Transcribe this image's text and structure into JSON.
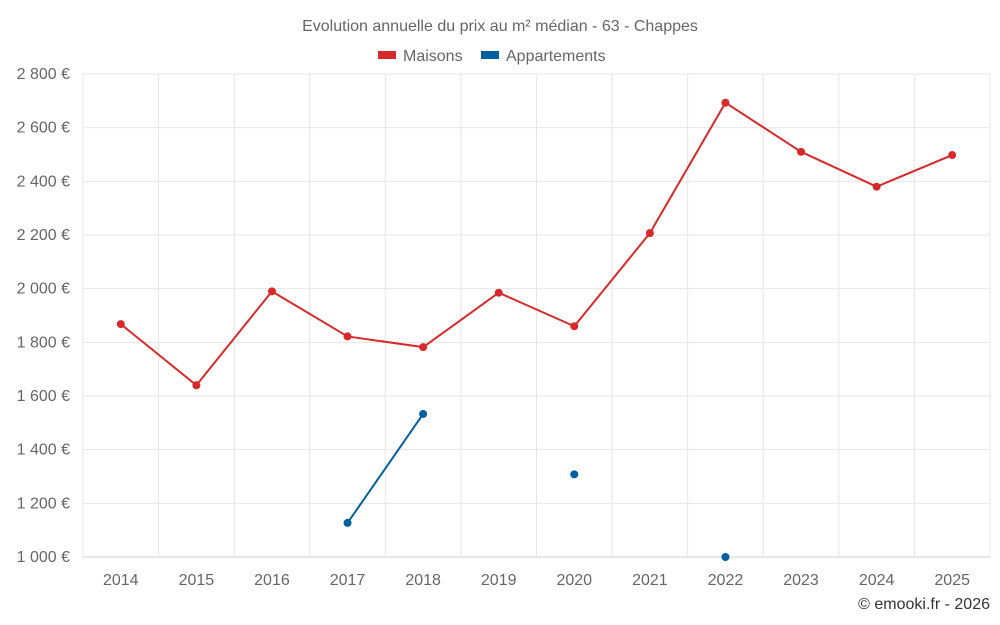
{
  "chart_data": {
    "type": "line",
    "title": "Evolution annuelle du prix au m² médian - 63 - Chappes",
    "categories": [
      "2014",
      "2015",
      "2016",
      "2017",
      "2018",
      "2019",
      "2020",
      "2021",
      "2022",
      "2023",
      "2024",
      "2025"
    ],
    "y_ticks": [
      "1 000 €",
      "1 200 €",
      "1 400 €",
      "1 600 €",
      "1 800 €",
      "2 000 €",
      "2 200 €",
      "2 400 €",
      "2 600 €",
      "2 800 €"
    ],
    "ylim": [
      1000,
      2800
    ],
    "grid": true,
    "legend_position": "top-center",
    "series": [
      {
        "name": "Maisons",
        "color": "#d62a2a",
        "values": [
          1868,
          1640,
          1990,
          1822,
          1782,
          1985,
          1860,
          2207,
          2693,
          2510,
          2380,
          2498
        ]
      },
      {
        "name": "Appartements",
        "color": "#005f9e",
        "values": [
          null,
          null,
          null,
          1127,
          1533,
          null,
          1308,
          null,
          1000,
          null,
          null,
          null
        ]
      }
    ],
    "credit": "© emooki.fr - 2026"
  }
}
